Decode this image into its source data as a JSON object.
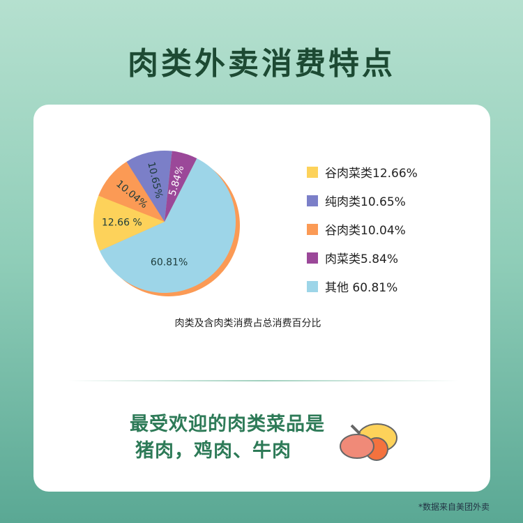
{
  "title": "肉类外卖消费特点",
  "chart_data": {
    "type": "pie",
    "title": "",
    "caption": "肉类及含肉类消费占总消费百分比",
    "slices": [
      {
        "name": "肉菜类",
        "legend": "肉菜类5.84%",
        "label": "5.84%",
        "value": 5.84,
        "color": "#9b4899"
      },
      {
        "name": "其他",
        "legend": "其他 60.81%",
        "label": "60.81%",
        "value": 60.81,
        "color": "#9dd5e8"
      },
      {
        "name": "谷肉菜类",
        "legend": "谷肉菜类12.66%",
        "label": "12.66 %",
        "value": 12.66,
        "color": "#fdd25a"
      },
      {
        "name": "谷肉类",
        "legend": "谷肉类10.04%",
        "label": "10.04%",
        "value": 10.04,
        "color": "#fb9a55"
      },
      {
        "name": "纯肉类",
        "legend": "纯肉类10.65%",
        "label": "10.65%",
        "value": 10.65,
        "color": "#7b7fc8"
      }
    ],
    "legend_order": [
      2,
      4,
      3,
      0,
      1
    ],
    "shadow_color": "#fb9a55"
  },
  "popular": {
    "line1": "最受欢迎的肉类菜品是",
    "line2": "猪肉，鸡肉、牛肉"
  },
  "note": "*数据来自美团外卖"
}
